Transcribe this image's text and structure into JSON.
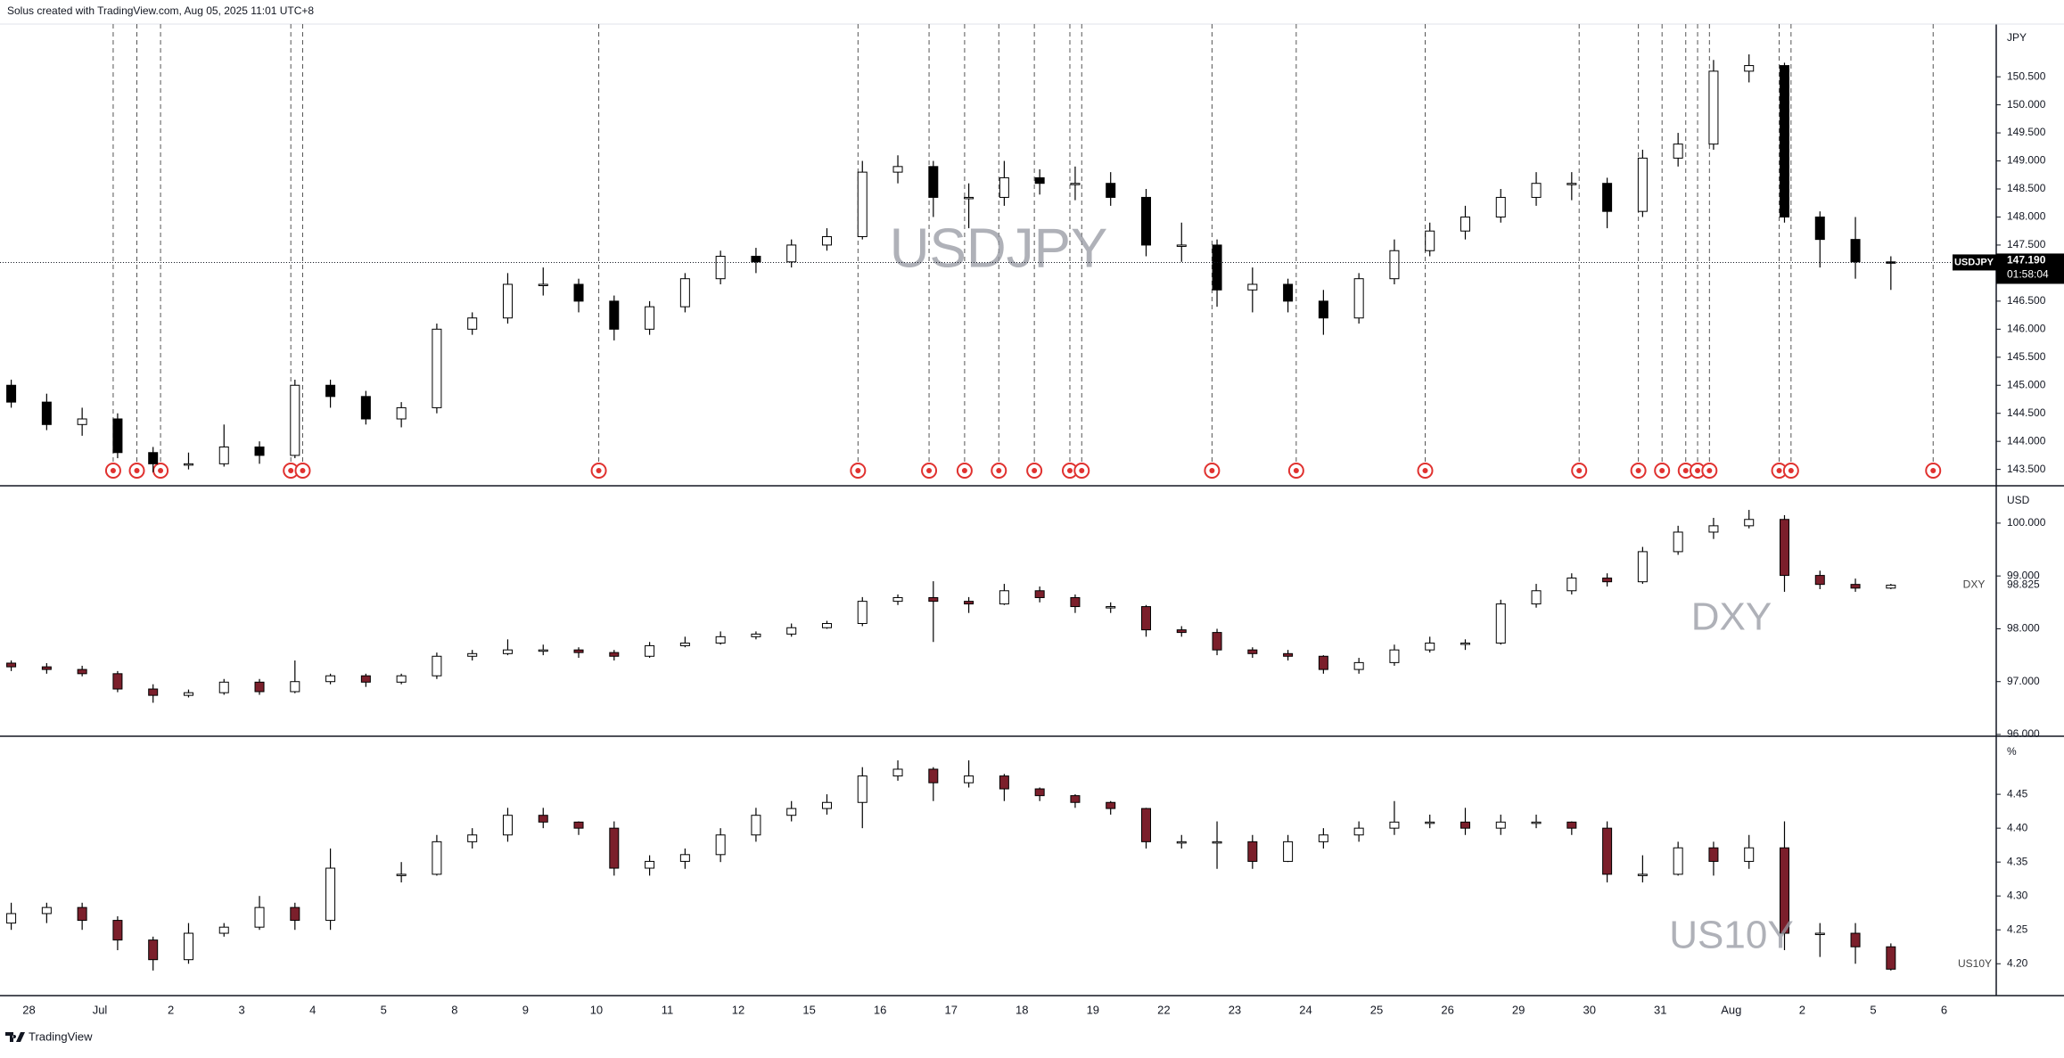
{
  "header": "Solus created with TradingView.com, Aug 05, 2025 11:01 UTC+8",
  "footer": "TradingView",
  "chart_data": [
    {
      "type": "candlestick",
      "title": "USDJPY",
      "currency": "JPY",
      "up_color": "#ffffff",
      "down_color": "#000000",
      "border_color": "#000000",
      "ylim": [
        143.24,
        151.44
      ],
      "yticks": [
        {
          "value": 143.5,
          "label": "143.500"
        },
        {
          "value": 144,
          "label": "144.000"
        },
        {
          "value": 144.5,
          "label": "144.500"
        },
        {
          "value": 145,
          "label": "145.000"
        },
        {
          "value": 145.5,
          "label": "145.500"
        },
        {
          "value": 146,
          "label": "146.000"
        },
        {
          "value": 146.5,
          "label": "146.500"
        },
        {
          "value": 147,
          "label": "147.000"
        },
        {
          "value": 147.5,
          "label": "147.500"
        },
        {
          "value": 148,
          "label": "148.000"
        },
        {
          "value": 148.5,
          "label": "148.500"
        },
        {
          "value": 149,
          "label": "149.000"
        },
        {
          "value": 149.5,
          "label": "149.500"
        },
        {
          "value": 150,
          "label": "150.000"
        },
        {
          "value": 150.5,
          "label": "150.500"
        }
      ],
      "last_price_label": "147.190",
      "countdown": "01:58:04",
      "ohlc": [
        [
          145.0,
          145.1,
          144.6,
          144.7
        ],
        [
          144.7,
          144.85,
          144.2,
          144.3
        ],
        [
          144.3,
          144.6,
          144.1,
          144.4
        ],
        [
          144.4,
          144.5,
          143.7,
          143.8
        ],
        [
          143.8,
          143.9,
          143.45,
          143.6
        ],
        [
          143.6,
          143.8,
          143.5,
          143.6
        ],
        [
          143.6,
          144.3,
          143.55,
          143.9
        ],
        [
          143.9,
          144.0,
          143.6,
          143.75
        ],
        [
          143.75,
          145.1,
          143.7,
          145.0
        ],
        [
          145.0,
          145.1,
          144.6,
          144.8
        ],
        [
          144.8,
          144.9,
          144.3,
          144.4
        ],
        [
          144.4,
          144.7,
          144.25,
          144.6
        ],
        [
          144.6,
          146.1,
          144.5,
          146.0
        ],
        [
          146.0,
          146.3,
          145.9,
          146.2
        ],
        [
          146.2,
          147.0,
          146.1,
          146.8
        ],
        [
          146.8,
          147.1,
          146.6,
          146.8
        ],
        [
          146.8,
          146.9,
          146.3,
          146.5
        ],
        [
          146.5,
          146.6,
          145.8,
          146.0
        ],
        [
          146.0,
          146.5,
          145.9,
          146.4
        ],
        [
          146.4,
          147.0,
          146.3,
          146.9
        ],
        [
          146.9,
          147.4,
          146.8,
          147.3
        ],
        [
          147.3,
          147.45,
          147.0,
          147.2
        ],
        [
          147.2,
          147.6,
          147.1,
          147.5
        ],
        [
          147.5,
          147.8,
          147.4,
          147.65
        ],
        [
          147.65,
          149.0,
          147.6,
          148.8
        ],
        [
          148.8,
          149.1,
          148.6,
          148.9
        ],
        [
          148.9,
          149.0,
          148.0,
          148.35
        ],
        [
          148.35,
          148.6,
          147.8,
          148.35
        ],
        [
          148.35,
          149.0,
          148.2,
          148.7
        ],
        [
          148.7,
          148.85,
          148.4,
          148.6
        ],
        [
          148.6,
          148.9,
          148.3,
          148.6
        ],
        [
          148.6,
          148.8,
          148.2,
          148.35
        ],
        [
          148.35,
          148.5,
          147.3,
          147.5
        ],
        [
          147.5,
          147.9,
          147.2,
          147.5
        ],
        [
          147.5,
          147.6,
          146.4,
          146.7
        ],
        [
          146.7,
          147.1,
          146.3,
          146.8
        ],
        [
          146.8,
          146.9,
          146.3,
          146.5
        ],
        [
          146.5,
          146.7,
          145.9,
          146.2
        ],
        [
          146.2,
          147.0,
          146.1,
          146.9
        ],
        [
          146.9,
          147.6,
          146.8,
          147.4
        ],
        [
          147.4,
          147.9,
          147.3,
          147.75
        ],
        [
          147.75,
          148.2,
          147.6,
          148.0
        ],
        [
          148.0,
          148.5,
          147.9,
          148.35
        ],
        [
          148.35,
          148.8,
          148.2,
          148.6
        ],
        [
          148.6,
          148.8,
          148.3,
          148.6
        ],
        [
          148.6,
          148.7,
          147.8,
          148.1
        ],
        [
          148.1,
          149.2,
          148.0,
          149.05
        ],
        [
          149.05,
          149.5,
          148.9,
          149.3
        ],
        [
          149.3,
          150.8,
          149.2,
          150.6
        ],
        [
          150.6,
          150.9,
          150.4,
          150.7
        ],
        [
          150.7,
          150.75,
          147.9,
          148.0
        ],
        [
          148.0,
          148.1,
          147.1,
          147.6
        ],
        [
          147.6,
          148.0,
          146.9,
          147.2
        ],
        [
          147.2,
          147.3,
          146.7,
          147.19
        ]
      ]
    },
    {
      "type": "candlestick",
      "title": "DXY",
      "currency": "USD",
      "up_color": "#ffffff",
      "down_color": "#7b1f2b",
      "border_color": "#000000",
      "ylim": [
        96.0,
        100.69
      ],
      "yticks": [
        {
          "value": 96,
          "label": "96.000"
        },
        {
          "value": 97,
          "label": "97.000"
        },
        {
          "value": 98,
          "label": "98.000"
        },
        {
          "value": 99,
          "label": "99.000"
        },
        {
          "value": 100,
          "label": "100.000"
        }
      ],
      "ohlc": [
        [
          97.35,
          97.4,
          97.2,
          97.28
        ],
        [
          97.28,
          97.35,
          97.15,
          97.23
        ],
        [
          97.23,
          97.3,
          97.1,
          97.15
        ],
        [
          97.15,
          97.2,
          96.8,
          96.86
        ],
        [
          96.86,
          96.95,
          96.6,
          96.74
        ],
        [
          96.74,
          96.85,
          96.7,
          96.79
        ],
        [
          96.79,
          97.05,
          96.75,
          96.99
        ],
        [
          96.99,
          97.05,
          96.75,
          96.81
        ],
        [
          96.81,
          97.4,
          96.78,
          97.0
        ],
        [
          97.0,
          97.15,
          96.95,
          97.11
        ],
        [
          97.11,
          97.15,
          96.9,
          96.99
        ],
        [
          96.99,
          97.15,
          96.95,
          97.11
        ],
        [
          97.11,
          97.55,
          97.05,
          97.48
        ],
        [
          97.48,
          97.6,
          97.4,
          97.53
        ],
        [
          97.53,
          97.8,
          97.5,
          97.6
        ],
        [
          97.6,
          97.7,
          97.5,
          97.6
        ],
        [
          97.6,
          97.65,
          97.45,
          97.55
        ],
        [
          97.55,
          97.6,
          97.4,
          97.48
        ],
        [
          97.48,
          97.75,
          97.45,
          97.68
        ],
        [
          97.68,
          97.85,
          97.65,
          97.73
        ],
        [
          97.73,
          97.95,
          97.7,
          97.85
        ],
        [
          97.85,
          97.95,
          97.8,
          97.9
        ],
        [
          97.9,
          98.1,
          97.85,
          98.02
        ],
        [
          98.02,
          98.15,
          98.0,
          98.1
        ],
        [
          98.1,
          98.6,
          98.05,
          98.52
        ],
        [
          98.52,
          98.65,
          98.45,
          98.59
        ],
        [
          98.59,
          98.9,
          97.75,
          98.52
        ],
        [
          98.52,
          98.6,
          98.3,
          98.47
        ],
        [
          98.47,
          98.85,
          98.45,
          98.72
        ],
        [
          98.72,
          98.8,
          98.5,
          98.59
        ],
        [
          98.59,
          98.65,
          98.3,
          98.42
        ],
        [
          98.42,
          98.5,
          98.3,
          98.42
        ],
        [
          98.42,
          98.45,
          97.85,
          97.98
        ],
        [
          97.98,
          98.05,
          97.85,
          97.93
        ],
        [
          97.93,
          98.0,
          97.5,
          97.6
        ],
        [
          97.6,
          97.65,
          97.45,
          97.53
        ],
        [
          97.53,
          97.6,
          97.4,
          97.48
        ],
        [
          97.48,
          97.5,
          97.15,
          97.23
        ],
        [
          97.23,
          97.45,
          97.15,
          97.36
        ],
        [
          97.36,
          97.7,
          97.3,
          97.6
        ],
        [
          97.6,
          97.85,
          97.55,
          97.73
        ],
        [
          97.73,
          97.8,
          97.6,
          97.73
        ],
        [
          97.73,
          98.55,
          97.7,
          98.47
        ],
        [
          98.47,
          98.85,
          98.4,
          98.72
        ],
        [
          98.72,
          99.05,
          98.65,
          98.96
        ],
        [
          98.96,
          99.05,
          98.8,
          98.89
        ],
        [
          98.89,
          99.55,
          98.85,
          99.46
        ],
        [
          99.46,
          99.95,
          99.4,
          99.83
        ],
        [
          99.83,
          100.1,
          99.7,
          99.95
        ],
        [
          99.95,
          100.25,
          99.9,
          100.07
        ],
        [
          100.07,
          100.15,
          98.7,
          99.01
        ],
        [
          99.01,
          99.1,
          98.75,
          98.84
        ],
        [
          98.84,
          98.95,
          98.7,
          98.77
        ],
        [
          98.77,
          98.85,
          98.75,
          98.825
        ]
      ]
    },
    {
      "type": "candlestick",
      "title": "US10Y",
      "currency": "%",
      "up_color": "#ffffff",
      "down_color": "#7b1f2b",
      "border_color": "#000000",
      "ylim": [
        4.153,
        4.533
      ],
      "yticks": [
        {
          "value": 4.2,
          "label": "4.20"
        },
        4.25,
        {
          "value": 4.3,
          "label": "4.30"
        },
        4.35,
        {
          "value": 4.4,
          "label": "4.40"
        },
        4.45
      ],
      "categories": [
        "28",
        "Jul",
        "2",
        "3",
        "4",
        "5",
        "8",
        "9",
        "10",
        "11",
        "12",
        "15",
        "16",
        "17",
        "18",
        "19",
        "22",
        "23",
        "24",
        "25",
        "26",
        "29",
        "30",
        "31",
        "Aug",
        "2",
        "5",
        "6"
      ],
      "ohlc": [
        [
          4.26,
          4.29,
          4.25,
          4.274
        ],
        [
          4.274,
          4.29,
          4.26,
          4.283
        ],
        [
          4.283,
          4.29,
          4.25,
          4.264
        ],
        [
          4.264,
          4.27,
          4.22,
          4.235
        ],
        [
          4.235,
          4.24,
          4.19,
          4.206
        ],
        [
          4.206,
          4.26,
          4.2,
          4.245
        ],
        [
          4.245,
          4.26,
          4.24,
          4.254
        ],
        [
          4.254,
          4.3,
          4.25,
          4.283
        ],
        [
          4.283,
          4.29,
          4.25,
          4.264
        ],
        [
          4.264,
          4.37,
          4.25,
          4.341
        ],
        null,
        [
          4.33,
          4.35,
          4.32,
          4.332
        ],
        [
          4.332,
          4.39,
          4.33,
          4.38
        ],
        [
          4.38,
          4.4,
          4.37,
          4.39
        ],
        [
          4.39,
          4.43,
          4.38,
          4.419
        ],
        [
          4.419,
          4.43,
          4.4,
          4.409
        ],
        [
          4.409,
          4.41,
          4.39,
          4.4
        ],
        [
          4.4,
          4.41,
          4.33,
          4.341
        ],
        [
          4.341,
          4.36,
          4.33,
          4.351
        ],
        [
          4.351,
          4.37,
          4.34,
          4.361
        ],
        [
          4.361,
          4.4,
          4.35,
          4.39
        ],
        [
          4.39,
          4.43,
          4.38,
          4.419
        ],
        [
          4.419,
          4.44,
          4.41,
          4.429
        ],
        [
          4.429,
          4.45,
          4.42,
          4.438
        ],
        [
          4.438,
          4.49,
          4.4,
          4.477
        ],
        [
          4.477,
          4.5,
          4.47,
          4.487
        ],
        [
          4.487,
          4.49,
          4.44,
          4.467
        ],
        [
          4.467,
          4.5,
          4.46,
          4.477
        ],
        [
          4.477,
          4.48,
          4.44,
          4.458
        ],
        [
          4.458,
          4.46,
          4.44,
          4.448
        ],
        [
          4.448,
          4.45,
          4.43,
          4.438
        ],
        [
          4.438,
          4.44,
          4.42,
          4.429
        ],
        [
          4.429,
          4.43,
          4.37,
          4.38
        ],
        [
          4.38,
          4.39,
          4.37,
          4.38
        ],
        [
          4.38,
          4.41,
          4.34,
          4.38
        ],
        [
          4.38,
          4.39,
          4.34,
          4.351
        ],
        [
          4.351,
          4.39,
          4.35,
          4.38
        ],
        [
          4.38,
          4.4,
          4.37,
          4.39
        ],
        [
          4.39,
          4.41,
          4.38,
          4.4
        ],
        [
          4.4,
          4.44,
          4.39,
          4.409
        ],
        [
          4.409,
          4.42,
          4.4,
          4.409
        ],
        [
          4.409,
          4.43,
          4.39,
          4.4
        ],
        [
          4.4,
          4.42,
          4.39,
          4.409
        ],
        [
          4.409,
          4.42,
          4.4,
          4.409
        ],
        [
          4.409,
          4.41,
          4.39,
          4.4
        ],
        [
          4.4,
          4.41,
          4.32,
          4.332
        ],
        [
          4.332,
          4.36,
          4.32,
          4.332
        ],
        [
          4.332,
          4.38,
          4.33,
          4.371
        ],
        [
          4.371,
          4.38,
          4.33,
          4.351
        ],
        [
          4.351,
          4.39,
          4.34,
          4.371
        ],
        [
          4.371,
          4.41,
          4.22,
          4.245
        ],
        [
          4.245,
          4.26,
          4.21,
          4.245
        ],
        [
          4.245,
          4.26,
          4.2,
          4.225
        ],
        [
          4.225,
          4.23,
          4.19,
          4.192
        ]
      ]
    }
  ]
}
